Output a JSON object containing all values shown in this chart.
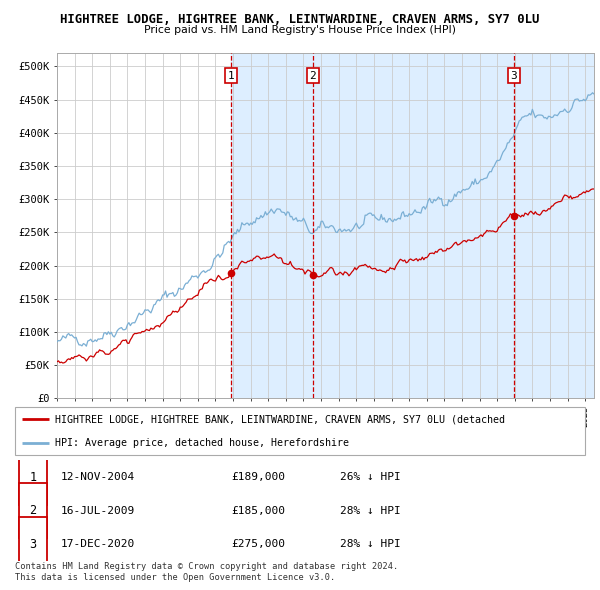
{
  "title": "HIGHTREE LODGE, HIGHTREE BANK, LEINTWARDINE, CRAVEN ARMS, SY7 0LU",
  "subtitle": "Price paid vs. HM Land Registry's House Price Index (HPI)",
  "xlim_start": 1995.0,
  "xlim_end": 2025.5,
  "ylim": [
    0,
    520000
  ],
  "yticks": [
    0,
    50000,
    100000,
    150000,
    200000,
    250000,
    300000,
    350000,
    400000,
    450000,
    500000
  ],
  "ytick_labels": [
    "£0",
    "£50K",
    "£100K",
    "£150K",
    "£200K",
    "£250K",
    "£300K",
    "£350K",
    "£400K",
    "£450K",
    "£500K"
  ],
  "background_color": "#ffffff",
  "plot_bg_color": "#ffffff",
  "grid_color": "#cccccc",
  "hpi_line_color": "#7bafd4",
  "price_line_color": "#cc0000",
  "shade_color": "#ddeeff",
  "vline_color": "#cc0000",
  "purchases": [
    {
      "date_num": 2004.87,
      "price": 189000,
      "label": "1"
    },
    {
      "date_num": 2009.54,
      "price": 185000,
      "label": "2"
    },
    {
      "date_num": 2020.96,
      "price": 275000,
      "label": "3"
    }
  ],
  "legend_line1": "HIGHTREE LODGE, HIGHTREE BANK, LEINTWARDINE, CRAVEN ARMS, SY7 0LU (detached",
  "legend_line2": "HPI: Average price, detached house, Herefordshire",
  "table_rows": [
    [
      "1",
      "12-NOV-2004",
      "£189,000",
      "26% ↓ HPI"
    ],
    [
      "2",
      "16-JUL-2009",
      "£185,000",
      "28% ↓ HPI"
    ],
    [
      "3",
      "17-DEC-2020",
      "£275,000",
      "28% ↓ HPI"
    ]
  ],
  "footer": "Contains HM Land Registry data © Crown copyright and database right 2024.\nThis data is licensed under the Open Government Licence v3.0."
}
